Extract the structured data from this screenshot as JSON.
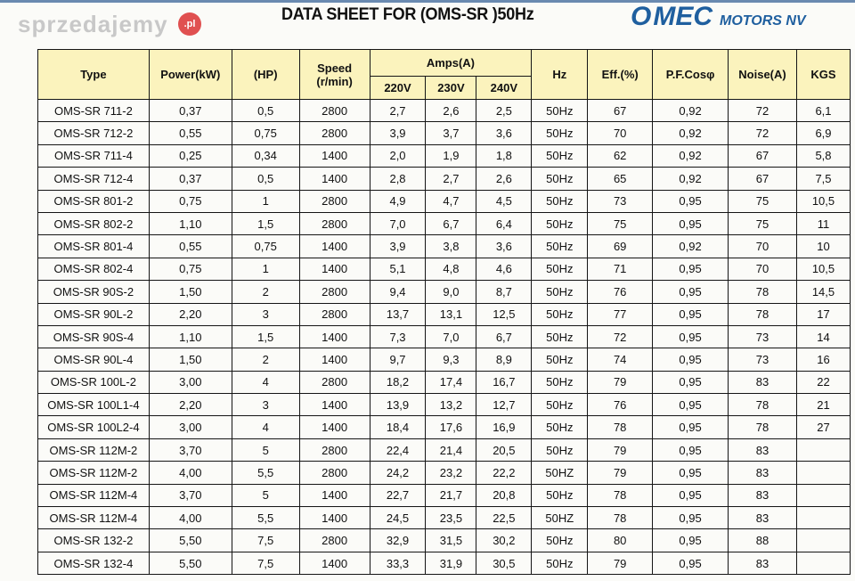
{
  "header": {
    "title": "DATA SHEET FOR (OMS-SR )50Hz",
    "logo_text": "OMEC MOTORS NV",
    "logo_o": "O",
    "logo_mec": "MEC",
    "logo_motors": "MOTORS NV",
    "brand_color": "#1f5f9f"
  },
  "table": {
    "columns": {
      "type": "Type",
      "power": "Power(kW)",
      "hp": "(HP)",
      "speed": "Speed",
      "speed_unit": "(r/min)",
      "amps": "Amps(A)",
      "v220": "220V",
      "v230": "230V",
      "v240": "240V",
      "hz": "Hz",
      "eff": "Eff.(%)",
      "pf": "P.F.Cosφ",
      "noise": "Noise(A)",
      "kgs": "KGS"
    },
    "header_color": "#fbf3bd",
    "rows": [
      [
        "OMS-SR 711-2",
        "0,37",
        "0,5",
        "2800",
        "2,7",
        "2,6",
        "2,5",
        "50Hz",
        "67",
        "0,92",
        "72",
        "6,1"
      ],
      [
        "OMS-SR 712-2",
        "0,55",
        "0,75",
        "2800",
        "3,9",
        "3,7",
        "3,6",
        "50Hz",
        "70",
        "0,92",
        "72",
        "6,9"
      ],
      [
        "OMS-SR 711-4",
        "0,25",
        "0,34",
        "1400",
        "2,0",
        "1,9",
        "1,8",
        "50Hz",
        "62",
        "0,92",
        "67",
        "5,8"
      ],
      [
        "OMS-SR 712-4",
        "0,37",
        "0,5",
        "1400",
        "2,8",
        "2,7",
        "2,6",
        "50Hz",
        "65",
        "0,92",
        "67",
        "7,5"
      ],
      [
        "OMS-SR 801-2",
        "0,75",
        "1",
        "2800",
        "4,9",
        "4,7",
        "4,5",
        "50Hz",
        "73",
        "0,95",
        "75",
        "10,5"
      ],
      [
        "OMS-SR 802-2",
        "1,10",
        "1,5",
        "2800",
        "7,0",
        "6,7",
        "6,4",
        "50Hz",
        "75",
        "0,95",
        "75",
        "11"
      ],
      [
        "OMS-SR 801-4",
        "0,55",
        "0,75",
        "1400",
        "3,9",
        "3,8",
        "3,6",
        "50Hz",
        "69",
        "0,92",
        "70",
        "10"
      ],
      [
        "OMS-SR 802-4",
        "0,75",
        "1",
        "1400",
        "5,1",
        "4,8",
        "4,6",
        "50Hz",
        "71",
        "0,95",
        "70",
        "10,5"
      ],
      [
        "OMS-SR 90S-2",
        "1,50",
        "2",
        "2800",
        "9,4",
        "9,0",
        "8,7",
        "50Hz",
        "76",
        "0,95",
        "78",
        "14,5"
      ],
      [
        "OMS-SR 90L-2",
        "2,20",
        "3",
        "2800",
        "13,7",
        "13,1",
        "12,5",
        "50Hz",
        "77",
        "0,95",
        "78",
        "17"
      ],
      [
        "OMS-SR 90S-4",
        "1,10",
        "1,5",
        "1400",
        "7,3",
        "7,0",
        "6,7",
        "50Hz",
        "72",
        "0,95",
        "73",
        "14"
      ],
      [
        "OMS-SR 90L-4",
        "1,50",
        "2",
        "1400",
        "9,7",
        "9,3",
        "8,9",
        "50Hz",
        "74",
        "0,95",
        "73",
        "16"
      ],
      [
        "OMS-SR 100L-2",
        "3,00",
        "4",
        "2800",
        "18,2",
        "17,4",
        "16,7",
        "50Hz",
        "79",
        "0,95",
        "83",
        "22"
      ],
      [
        "OMS-SR 100L1-4",
        "2,20",
        "3",
        "1400",
        "13,9",
        "13,2",
        "12,7",
        "50Hz",
        "76",
        "0,95",
        "78",
        "21"
      ],
      [
        "OMS-SR 100L2-4",
        "3,00",
        "4",
        "1400",
        "18,4",
        "17,6",
        "16,9",
        "50Hz",
        "78",
        "0,95",
        "78",
        "27"
      ],
      [
        "OMS-SR 112M-2",
        "3,70",
        "5",
        "2800",
        "22,4",
        "21,4",
        "20,5",
        "50Hz",
        "79",
        "0,95",
        "83",
        ""
      ],
      [
        "OMS-SR 112M-2",
        "4,00",
        "5,5",
        "2800",
        "24,2",
        "23,2",
        "22,2",
        "50HZ",
        "79",
        "0,95",
        "83",
        ""
      ],
      [
        "OMS-SR 112M-4",
        "3,70",
        "5",
        "1400",
        "22,7",
        "21,7",
        "20,8",
        "50Hz",
        "78",
        "0,95",
        "83",
        ""
      ],
      [
        "OMS-SR 112M-4",
        "4,00",
        "5,5",
        "1400",
        "24,5",
        "23,5",
        "22,5",
        "50HZ",
        "78",
        "0,95",
        "83",
        ""
      ],
      [
        "OMS-SR 132-2",
        "5,50",
        "7,5",
        "2800",
        "32,9",
        "31,5",
        "30,2",
        "50Hz",
        "80",
        "0,95",
        "88",
        ""
      ],
      [
        "OMS-SR 132-4",
        "5,50",
        "7,5",
        "1400",
        "33,3",
        "31,9",
        "30,5",
        "50Hz",
        "79",
        "0,95",
        "83",
        ""
      ]
    ]
  },
  "watermark": {
    "text": "sprzedajemy",
    "badge": ".pl"
  }
}
